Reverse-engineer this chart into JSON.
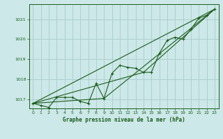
{
  "title": "Graphe pression niveau de la mer (hPa)",
  "bg_color": "#cce8e8",
  "grid_color": "#aacccc",
  "line_color": "#1a5c1a",
  "xlim": [
    -0.5,
    23.5
  ],
  "ylim": [
    1016.55,
    1021.75
  ],
  "yticks": [
    1017,
    1018,
    1019,
    1020,
    1021
  ],
  "xticks": [
    0,
    1,
    2,
    3,
    4,
    5,
    6,
    7,
    8,
    9,
    10,
    11,
    12,
    13,
    14,
    15,
    16,
    17,
    18,
    19,
    20,
    21,
    22,
    23
  ],
  "series1_x": [
    0,
    1,
    2,
    3,
    4,
    5,
    6,
    7,
    8,
    9,
    10,
    11,
    12,
    13,
    14,
    15,
    16,
    17,
    18,
    19,
    20,
    21,
    22,
    23
  ],
  "series1_y": [
    1016.8,
    1016.7,
    1016.6,
    1017.1,
    1017.1,
    1017.1,
    1016.9,
    1016.8,
    1017.8,
    1017.05,
    1018.3,
    1018.7,
    1018.6,
    1018.55,
    1018.35,
    1018.35,
    1019.3,
    1019.95,
    1020.1,
    1020.0,
    1020.5,
    1021.05,
    1021.2,
    1021.5
  ],
  "series2_x": [
    0,
    23
  ],
  "series2_y": [
    1016.8,
    1021.5
  ],
  "series3_x": [
    0,
    9,
    23
  ],
  "series3_y": [
    1016.8,
    1017.05,
    1021.5
  ],
  "series4_x": [
    0,
    14,
    23
  ],
  "series4_y": [
    1016.8,
    1018.35,
    1021.5
  ],
  "xlabel_fontsize": 5.5,
  "tick_fontsize": 4.5,
  "ylabel_fontsize": 5.5
}
